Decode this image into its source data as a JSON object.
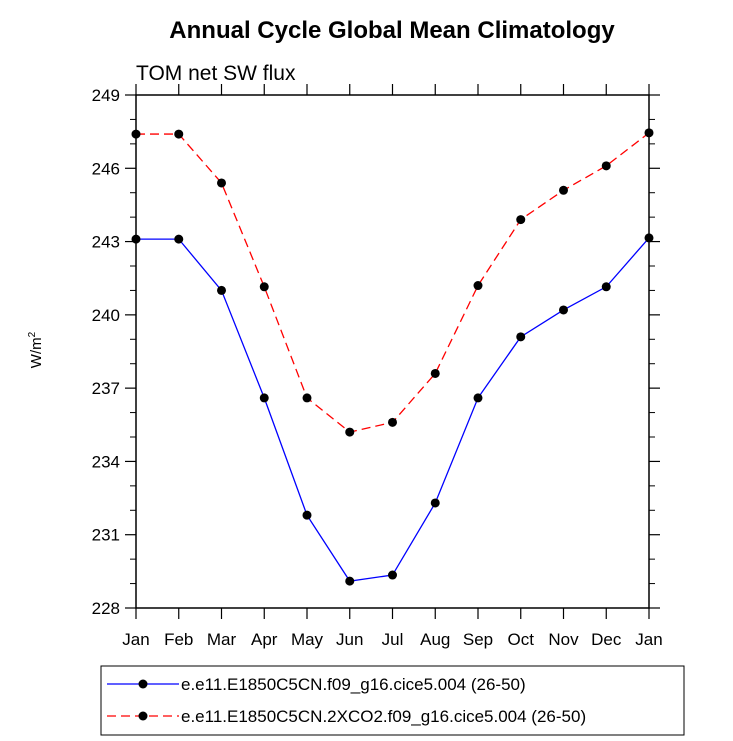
{
  "chart_data": {
    "type": "line",
    "title": "Annual Cycle Global Mean Climatology",
    "subtitle": "TOM net SW flux",
    "xlabel": "",
    "ylabel": "W/m",
    "ylabel_sup": "2",
    "ylim": [
      228,
      249
    ],
    "yticks": [
      228,
      231,
      234,
      237,
      240,
      243,
      246,
      249
    ],
    "yticks_labels": [
      "228",
      "231",
      "234",
      "237",
      "240",
      "243",
      "246",
      "249"
    ],
    "categories": [
      "Jan",
      "Feb",
      "Mar",
      "Apr",
      "May",
      "Jun",
      "Jul",
      "Aug",
      "Sep",
      "Oct",
      "Nov",
      "Dec",
      "Jan"
    ],
    "grid": false,
    "legend_position": "bottom",
    "series": [
      {
        "name": "e.e11.E1850C5CN.f09_g16.cice5.004 (26-50)",
        "color": "#0000ff",
        "line_style": "solid",
        "values": [
          243.1,
          243.1,
          241.0,
          236.6,
          231.8,
          229.1,
          229.35,
          232.3,
          236.6,
          239.1,
          240.2,
          241.15,
          243.15
        ]
      },
      {
        "name": "e.e11.E1850C5CN.2XCO2.f09_g16.cice5.004 (26-50)",
        "color": "#ff0000",
        "line_style": "dashed",
        "values": [
          247.4,
          247.4,
          245.4,
          241.15,
          236.6,
          235.2,
          235.6,
          237.6,
          241.2,
          243.9,
          245.1,
          246.1,
          247.45
        ]
      }
    ]
  }
}
